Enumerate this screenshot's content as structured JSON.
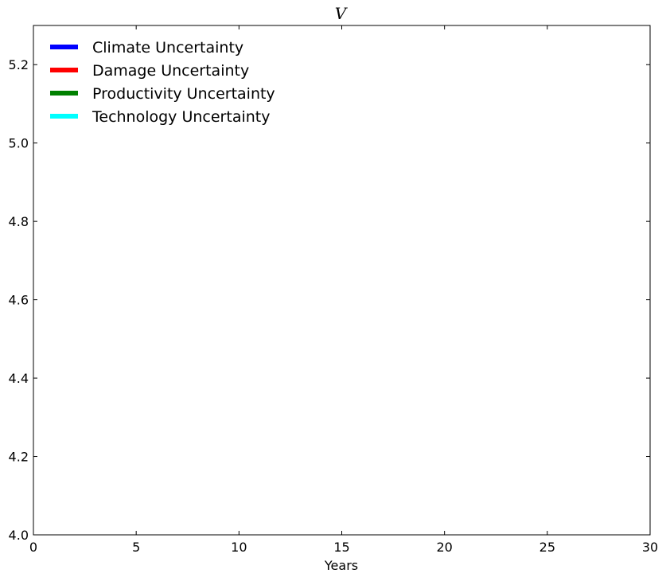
{
  "chart_data": {
    "type": "line",
    "title": "V",
    "xlabel": "Years",
    "ylabel": "",
    "xlim": [
      0,
      30
    ],
    "ylim": [
      4.0,
      5.3
    ],
    "x_ticks": [
      0,
      5,
      10,
      15,
      20,
      25,
      30
    ],
    "x_tick_labels": [
      "0",
      "5",
      "10",
      "15",
      "20",
      "25",
      "30"
    ],
    "y_ticks": [
      4.0,
      4.2,
      4.4,
      4.6,
      4.8,
      5.0,
      5.2
    ],
    "y_tick_labels": [
      "4.0",
      "4.2",
      "4.4",
      "4.6",
      "4.8",
      "5.0",
      "5.2"
    ],
    "grid": false,
    "legend_position": "top-left",
    "series": [
      {
        "name": "Climate Uncertainty",
        "color": "#0000ff",
        "x": [],
        "y": []
      },
      {
        "name": "Damage Uncertainty",
        "color": "#ff0000",
        "x": [],
        "y": []
      },
      {
        "name": "Productivity Uncertainty",
        "color": "#008000",
        "x": [],
        "y": []
      },
      {
        "name": "Technology Uncertainty",
        "color": "#00ffff",
        "x": [],
        "y": []
      }
    ]
  }
}
